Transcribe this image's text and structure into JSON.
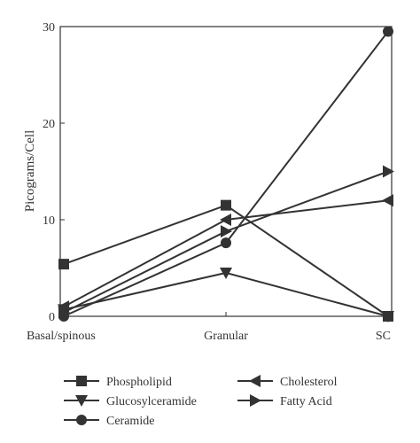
{
  "chart_data": {
    "type": "line",
    "title": "",
    "xlabel": "",
    "ylabel": "Picograms/Cell",
    "categories": [
      "Basal/spinous",
      "Granular",
      "SC"
    ],
    "ylim": [
      0,
      30
    ],
    "yticks": [
      0,
      10,
      20,
      30
    ],
    "grid": false,
    "legend_position": "bottom",
    "line_color": "#333333",
    "series": [
      {
        "name": "Phospholipid",
        "marker": "square",
        "values": [
          5.4,
          11.5,
          0
        ]
      },
      {
        "name": "Glucosylceramide",
        "marker": "triangle-down",
        "values": [
          0.7,
          4.5,
          0
        ]
      },
      {
        "name": "Ceramide",
        "marker": "circle",
        "values": [
          0,
          7.6,
          29.5
        ]
      },
      {
        "name": "Cholesterol",
        "marker": "triangle-left",
        "values": [
          1.0,
          10.0,
          12.0
        ]
      },
      {
        "name": "Fatty Acid",
        "marker": "triangle-right",
        "values": [
          0.4,
          8.8,
          15.0
        ]
      }
    ]
  }
}
